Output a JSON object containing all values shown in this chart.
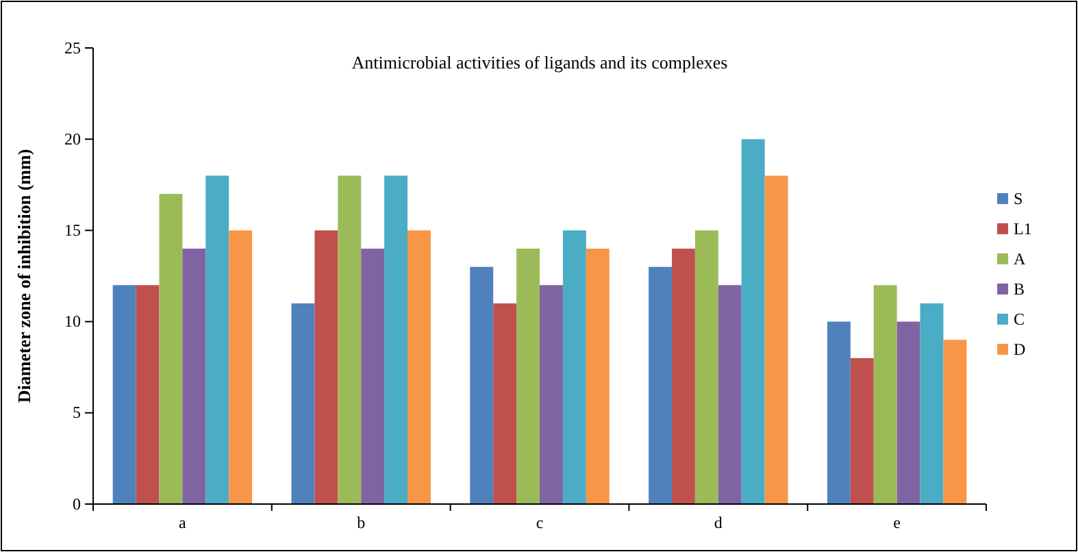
{
  "chart_data": {
    "type": "bar",
    "title": "Antimicrobial activities of ligands and its complexes",
    "ylabel": "Diameter zone of inhibition (mm)",
    "categories": [
      "a",
      "b",
      "c",
      "d",
      "e"
    ],
    "series": [
      {
        "name": "S",
        "color": "#4f81bd",
        "values": [
          12,
          11,
          13,
          13,
          10
        ]
      },
      {
        "name": "L1",
        "color": "#c0504d",
        "values": [
          12,
          15,
          11,
          14,
          8
        ]
      },
      {
        "name": "A",
        "color": "#9bbb59",
        "values": [
          17,
          18,
          14,
          15,
          12
        ]
      },
      {
        "name": "B",
        "color": "#8064a2",
        "values": [
          14,
          14,
          12,
          12,
          10
        ]
      },
      {
        "name": "C",
        "color": "#4bacc6",
        "values": [
          18,
          18,
          15,
          20,
          11
        ]
      },
      {
        "name": "D",
        "color": "#f79646",
        "values": [
          15,
          15,
          14,
          18,
          9
        ]
      }
    ],
    "ylim": [
      0,
      25
    ],
    "yticks": [
      0,
      5,
      10,
      15,
      20,
      25
    ],
    "grid": false,
    "legend": "right"
  }
}
